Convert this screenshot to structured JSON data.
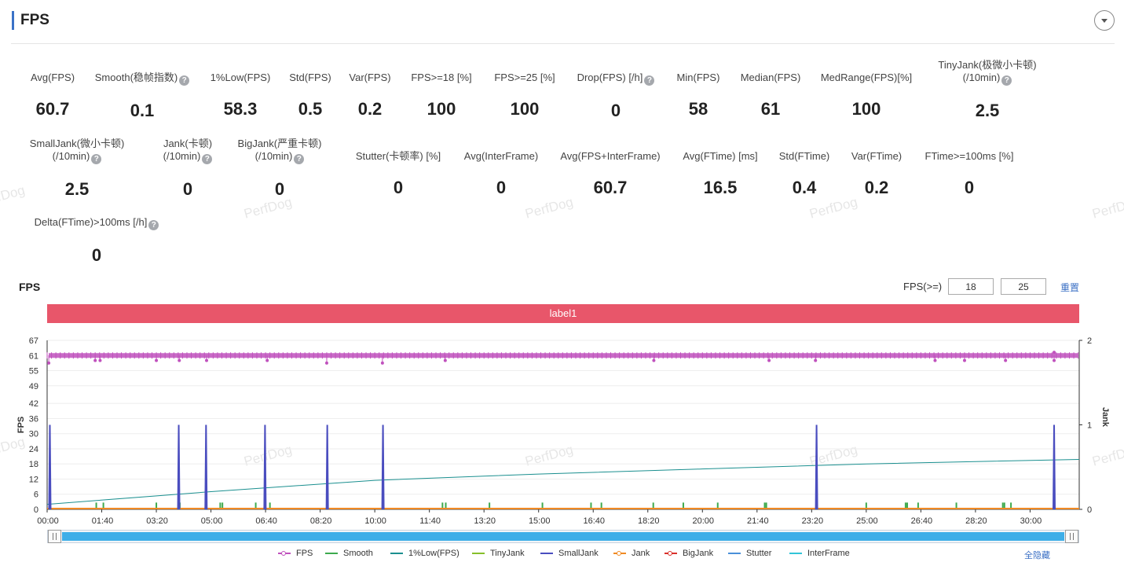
{
  "header": {
    "title": "FPS"
  },
  "metrics": [
    {
      "label": "Avg(FPS)",
      "value": "60.7",
      "help": false
    },
    {
      "label": "Smooth(稳帧指数)",
      "value": "0.1",
      "help": true
    },
    {
      "label": "1%Low(FPS)",
      "value": "58.3",
      "help": false
    },
    {
      "label": "Std(FPS)",
      "value": "0.5",
      "help": false
    },
    {
      "label": "Var(FPS)",
      "value": "0.2",
      "help": false
    },
    {
      "label": "FPS>=18 [%]",
      "value": "100",
      "help": false
    },
    {
      "label": "FPS>=25 [%]",
      "value": "100",
      "help": false
    },
    {
      "label": "Drop(FPS) [/h]",
      "value": "0",
      "help": true
    },
    {
      "label": "Min(FPS)",
      "value": "58",
      "help": false
    },
    {
      "label": "Median(FPS)",
      "value": "61",
      "help": false
    },
    {
      "label": "MedRange(FPS)[%]",
      "value": "100",
      "help": false
    },
    {
      "label": "TinyJank(极微小卡顿)",
      "label2": "(/10min)",
      "value": "2.5",
      "help": true
    },
    {
      "label": "SmallJank(微小卡顿)",
      "label2": "(/10min)",
      "value": "2.5",
      "help": true
    },
    {
      "label": "Jank(卡顿)",
      "label2": "(/10min)",
      "value": "0",
      "help": true
    },
    {
      "label": "BigJank(严重卡顿)",
      "label2": "(/10min)",
      "value": "0",
      "help": true
    },
    {
      "label": "Stutter(卡顿率) [%]",
      "value": "0",
      "help": false
    },
    {
      "label": "Avg(InterFrame)",
      "value": "0",
      "help": false
    },
    {
      "label": "Avg(FPS+InterFrame)",
      "value": "60.7",
      "help": false
    },
    {
      "label": "Avg(FTime) [ms]",
      "value": "16.5",
      "help": false
    },
    {
      "label": "Std(FTime)",
      "value": "0.4",
      "help": false
    },
    {
      "label": "Var(FTime)",
      "value": "0.2",
      "help": false
    },
    {
      "label": "FTime>=100ms [%]",
      "value": "0",
      "help": false
    },
    {
      "label": "Delta(FTime)>100ms [/h]",
      "value": "0",
      "help": true
    }
  ],
  "watermark": "PerfDog",
  "chart_header": {
    "title": "FPS",
    "threshold_label": "FPS(>=)",
    "threshold_1": "18",
    "threshold_2": "25",
    "reset_label": "重置"
  },
  "label_bar": {
    "text": "label1",
    "color": "#e8566a"
  },
  "legend": {
    "items": [
      {
        "name": "FPS",
        "color": "#c051bd",
        "style": "dot"
      },
      {
        "name": "Smooth",
        "color": "#3daa4e",
        "style": "line"
      },
      {
        "name": "1%Low(FPS)",
        "color": "#1a8f8f",
        "style": "line"
      },
      {
        "name": "TinyJank",
        "color": "#86bf2a",
        "style": "line"
      },
      {
        "name": "SmallJank",
        "color": "#4a4dbf",
        "style": "line"
      },
      {
        "name": "Jank",
        "color": "#f08a24",
        "style": "dot"
      },
      {
        "name": "BigJank",
        "color": "#d9312b",
        "style": "dot"
      },
      {
        "name": "Stutter",
        "color": "#4a90d9",
        "style": "line"
      },
      {
        "name": "InterFrame",
        "color": "#32c5d8",
        "style": "line"
      }
    ],
    "hide_all_label": "全隐藏"
  },
  "chart_data": {
    "type": "line",
    "x_unit": "mm:ss",
    "x_range": [
      0,
      1890
    ],
    "x_ticks": [
      "00:00",
      "01:40",
      "03:20",
      "05:00",
      "06:40",
      "08:20",
      "10:00",
      "11:40",
      "13:20",
      "15:00",
      "16:40",
      "18:20",
      "20:00",
      "21:40",
      "23:20",
      "25:00",
      "26:40",
      "28:20",
      "30:00"
    ],
    "x_tick_seconds": [
      0,
      100,
      200,
      300,
      400,
      500,
      600,
      700,
      800,
      900,
      1000,
      1100,
      1200,
      1300,
      1400,
      1500,
      1600,
      1700,
      1800
    ],
    "ylabel": "FPS",
    "y_ticks": [
      0,
      6,
      12,
      18,
      24,
      30,
      36,
      42,
      49,
      55,
      61,
      67
    ],
    "ylim": [
      0,
      67
    ],
    "y2label": "Jank",
    "y2_ticks": [
      0,
      1,
      2
    ],
    "y2lim": [
      0,
      2
    ],
    "series": [
      {
        "name": "FPS",
        "axis": "left",
        "level": 61,
        "dips": [
          [
            3,
            58
          ],
          [
            88,
            59
          ],
          [
            97,
            59
          ],
          [
            200,
            59
          ],
          [
            242,
            59
          ],
          [
            292,
            59
          ],
          [
            403,
            59
          ],
          [
            512,
            58
          ],
          [
            614,
            58
          ],
          [
            729,
            59
          ],
          [
            1111,
            59
          ],
          [
            1322,
            59
          ],
          [
            1407,
            59
          ],
          [
            1626,
            59
          ],
          [
            1680,
            59
          ],
          [
            1755,
            59
          ],
          [
            1844,
            59
          ]
        ]
      },
      {
        "name": "SmallJank",
        "axis": "right",
        "events": [
          5,
          241,
          291,
          399,
          513,
          615,
          1409,
          1844
        ]
      },
      {
        "name": "Smooth",
        "axis": "right",
        "events": [
          90,
          103,
          200,
          243,
          317,
          321,
          382,
          408,
          724,
          730,
          810,
          907,
          996,
          1015,
          1110,
          1165,
          1228,
          1314,
          1317,
          1410,
          1500,
          1572,
          1575,
          1595,
          1665,
          1750,
          1753,
          1765
        ]
      },
      {
        "name": "1%Low(FPS)",
        "axis": "left",
        "points": [
          [
            0,
            2
          ],
          [
            300,
            7
          ],
          [
            600,
            11.5
          ],
          [
            900,
            14
          ],
          [
            1200,
            16
          ],
          [
            1500,
            18
          ],
          [
            1890,
            19.8
          ]
        ]
      }
    ]
  }
}
